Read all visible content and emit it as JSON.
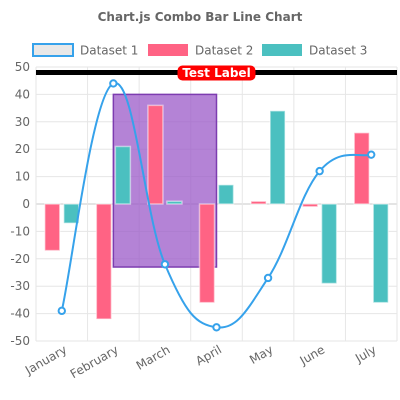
{
  "chart_data": {
    "type": "bar",
    "title": "Chart.js Combo Bar Line Chart",
    "categories": [
      "January",
      "February",
      "March",
      "April",
      "May",
      "June",
      "July"
    ],
    "ylim": [
      -50,
      50
    ],
    "yticks": [
      50,
      40,
      30,
      20,
      10,
      0,
      -10,
      -20,
      -30,
      -40,
      -50
    ],
    "grid": true,
    "legend_position": "top",
    "series": [
      {
        "name": "Dataset 1",
        "type": "line",
        "smooth": true,
        "color": "#36a2eb",
        "fill": "#e8e8e8",
        "values": [
          -39,
          44,
          -22,
          -45,
          -27,
          12,
          18
        ]
      },
      {
        "name": "Dataset 2",
        "type": "bar",
        "color": "#ff6384",
        "values": [
          -17,
          -42,
          36,
          -36,
          1,
          -1,
          26
        ]
      },
      {
        "name": "Dataset 3",
        "type": "bar",
        "color": "#4bc0c0",
        "values": [
          -7,
          21,
          1,
          7,
          34,
          -29,
          -36
        ]
      }
    ],
    "annotations": [
      {
        "type": "line",
        "value": 48,
        "color": "#000000"
      },
      {
        "type": "label",
        "text": "Test Label",
        "color": "#ff0000"
      },
      {
        "type": "box",
        "x_from": "February",
        "x_to": "April",
        "y_from": -23,
        "y_to": 40,
        "fill": "#9b59c8",
        "stroke": "#7d3cb0"
      }
    ]
  }
}
